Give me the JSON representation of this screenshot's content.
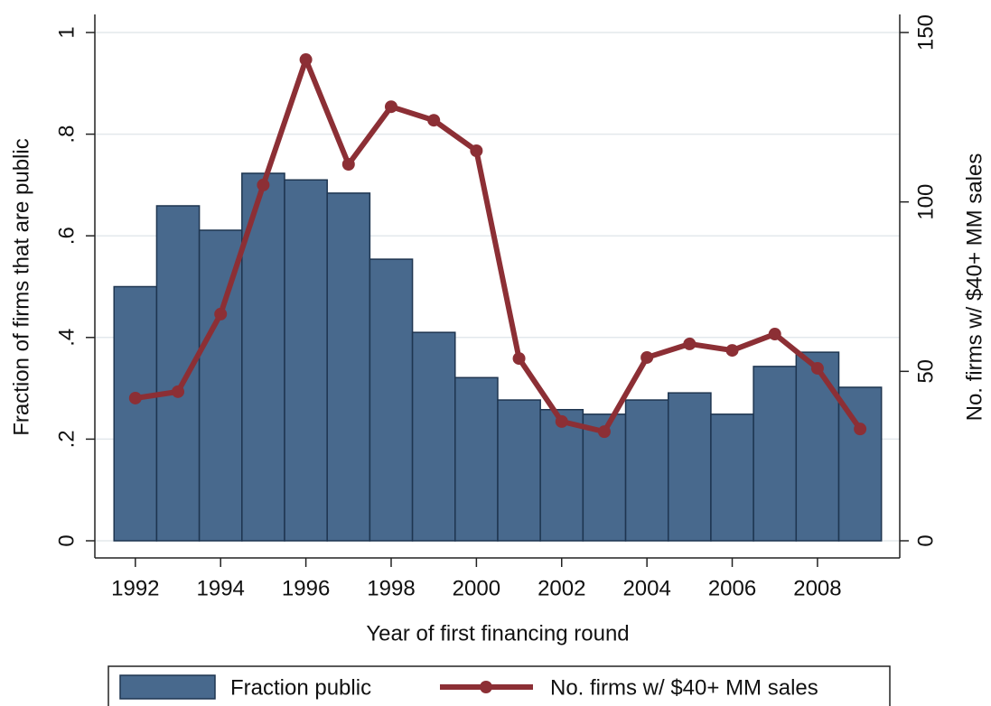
{
  "chart_data": {
    "type": "bar_line",
    "x_label": "Year of first financing round",
    "y_label": "Fraction of firms that are public",
    "y2_label": "No. firms w/ $40+ MM sales",
    "x": [
      1992,
      1993,
      1994,
      1995,
      1996,
      1997,
      1998,
      1999,
      2000,
      2001,
      2002,
      2003,
      2004,
      2005,
      2006,
      2007,
      2008,
      2009
    ],
    "series": [
      {
        "name": "Fraction public",
        "type": "bar",
        "color": "#48698d",
        "values": [
          0.5,
          0.659,
          0.611,
          0.723,
          0.71,
          0.684,
          0.554,
          0.41,
          0.321,
          0.277,
          0.258,
          0.249,
          0.277,
          0.291,
          0.249,
          0.343,
          0.371,
          0.302
        ]
      },
      {
        "name": "No. firms w/ $40+ MM sales",
        "type": "line",
        "axis": "y2",
        "color": "#8c2f35",
        "values": [
          42.1,
          44.0,
          66.9,
          105.0,
          142.0,
          111.1,
          128.1,
          124.1,
          115.1,
          53.8,
          35.2,
          32.2,
          54.1,
          58.1,
          56.2,
          61.0,
          50.9,
          33.0
        ]
      }
    ],
    "xlim": [
      1991.05,
      2009.93
    ],
    "xticks": [
      1992,
      1994,
      1996,
      1998,
      2000,
      2002,
      2004,
      2006,
      2008
    ],
    "ylim": [
      0,
      1
    ],
    "yticks": [
      0,
      {
        "value": 0.2,
        "label": ".2"
      },
      {
        "value": 0.4,
        "label": ".4"
      },
      {
        "value": 0.6,
        "label": ".6"
      },
      {
        "value": 0.8,
        "label": ".8"
      },
      1
    ],
    "y2lim": [
      0,
      150
    ],
    "y2ticks": [
      0,
      50,
      100,
      150
    ],
    "grid": true,
    "legend": "bottom"
  }
}
